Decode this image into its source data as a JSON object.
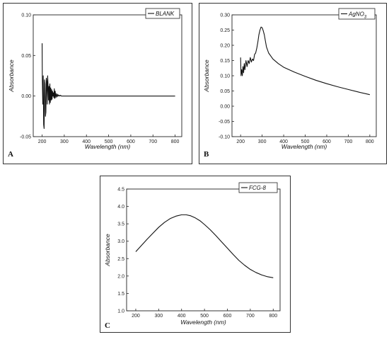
{
  "chart_data": [
    {
      "id": "A",
      "type": "line",
      "panel_letter": "A",
      "xlabel": "Wavelength (nm)",
      "ylabel": "Absorbance",
      "xlim": [
        160,
        830
      ],
      "ylim": [
        -0.05,
        0.1
      ],
      "xticks": [
        200,
        300,
        400,
        500,
        600,
        700,
        800
      ],
      "yticks": [
        -0.05,
        0.0,
        0.05,
        0.1
      ],
      "ytick_labels": [
        "-0.05",
        "0.00",
        "0.05",
        "0.10"
      ],
      "legend": "top-right",
      "series": [
        {
          "name": "BLANK",
          "x": [
            200,
            201,
            203,
            205,
            207,
            209,
            211,
            213,
            215,
            217,
            219,
            221,
            223,
            225,
            227,
            229,
            231,
            233,
            235,
            237,
            239,
            241,
            243,
            245,
            247,
            249,
            251,
            253,
            255,
            257,
            259,
            262,
            265,
            268,
            271,
            274,
            277,
            280,
            283,
            287,
            291,
            295,
            300,
            320,
            350,
            400,
            450,
            500,
            550,
            600,
            650,
            700,
            750,
            800
          ],
          "y": [
            0.065,
            0.02,
            -0.01,
            0.025,
            -0.035,
            -0.04,
            0.02,
            0.015,
            -0.025,
            -0.02,
            0.022,
            0.018,
            -0.01,
            0.025,
            0.012,
            -0.005,
            0.012,
            -0.01,
            0.015,
            -0.008,
            0.01,
            -0.005,
            0.008,
            -0.004,
            0.006,
            0.0,
            0.004,
            -0.002,
            0.009,
            -0.003,
            0.006,
            -0.002,
            0.003,
            -0.001,
            0.002,
            0.0,
            0.001,
            0.0,
            0.001,
            0.0,
            0.0,
            0.0,
            0.0,
            0.0,
            0.0,
            0.0,
            0.0,
            0.0,
            0.0,
            0.0,
            0.0,
            0.0,
            0.0,
            0.0
          ]
        }
      ]
    },
    {
      "id": "B",
      "type": "line",
      "panel_letter": "B",
      "xlabel": "Wavelength (nm)",
      "ylabel": "Absorbance",
      "xlim": [
        160,
        830
      ],
      "ylim": [
        -0.1,
        0.3
      ],
      "xticks": [
        200,
        300,
        400,
        500,
        600,
        700,
        800
      ],
      "yticks": [
        -0.1,
        -0.05,
        0.0,
        0.05,
        0.1,
        0.15,
        0.2,
        0.25,
        0.3
      ],
      "ytick_labels": [
        "-0.10",
        "-0.05",
        "0.00",
        "0.05",
        "0.10",
        "0.15",
        "0.20",
        "0.25",
        "0.30"
      ],
      "legend": "top-right",
      "series": [
        {
          "name": "AgNO3",
          "name_main": "AgNO",
          "name_sub": "3",
          "x": [
            200,
            202,
            205,
            208,
            211,
            214,
            217,
            220,
            225,
            230,
            235,
            240,
            245,
            250,
            255,
            260,
            265,
            270,
            275,
            280,
            285,
            290,
            295,
            300,
            305,
            310,
            315,
            320,
            330,
            340,
            350,
            375,
            400,
            450,
            500,
            550,
            600,
            650,
            700,
            750,
            800
          ],
          "y": [
            0.16,
            0.1,
            0.12,
            0.1,
            0.13,
            0.11,
            0.14,
            0.12,
            0.15,
            0.13,
            0.15,
            0.14,
            0.16,
            0.145,
            0.155,
            0.15,
            0.17,
            0.175,
            0.19,
            0.21,
            0.235,
            0.25,
            0.26,
            0.258,
            0.248,
            0.235,
            0.215,
            0.195,
            0.175,
            0.165,
            0.155,
            0.14,
            0.128,
            0.112,
            0.098,
            0.085,
            0.074,
            0.064,
            0.055,
            0.046,
            0.038
          ]
        }
      ]
    },
    {
      "id": "C",
      "type": "line",
      "panel_letter": "C",
      "xlabel": "Wavelength (nm)",
      "ylabel": "Absorbance",
      "xlim": [
        160,
        830
      ],
      "ylim": [
        1.0,
        4.5
      ],
      "xticks": [
        200,
        300,
        400,
        500,
        600,
        700,
        800
      ],
      "yticks": [
        1.0,
        1.5,
        2.0,
        2.5,
        3.0,
        3.5,
        4.0,
        4.5
      ],
      "ytick_labels": [
        "1.0",
        "1.5",
        "2.0",
        "2.5",
        "3.0",
        "3.5",
        "4.0",
        "4.5"
      ],
      "legend": "top-right",
      "series": [
        {
          "name": "FCG-8",
          "x": [
            200,
            225,
            250,
            275,
            300,
            325,
            350,
            375,
            400,
            420,
            440,
            460,
            480,
            500,
            525,
            550,
            575,
            600,
            625,
            650,
            675,
            700,
            725,
            750,
            775,
            800
          ],
          "y": [
            2.7,
            2.88,
            3.06,
            3.23,
            3.4,
            3.54,
            3.65,
            3.72,
            3.76,
            3.76,
            3.73,
            3.67,
            3.59,
            3.48,
            3.33,
            3.16,
            2.98,
            2.8,
            2.62,
            2.45,
            2.31,
            2.19,
            2.1,
            2.03,
            1.98,
            1.95
          ]
        }
      ]
    }
  ]
}
